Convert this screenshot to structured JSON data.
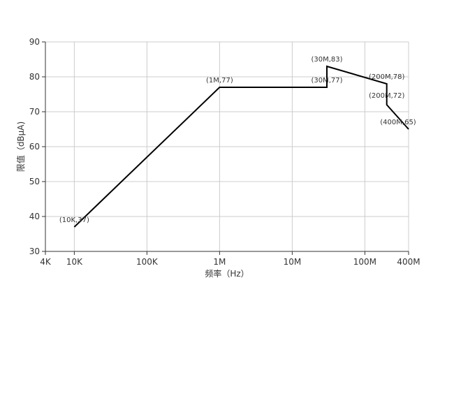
{
  "chart_data": {
    "type": "line",
    "title": "",
    "xlabel": "频率（Hz）",
    "ylabel": "限值（dBμA)",
    "x_scale": "log",
    "x_range_hz": [
      4000,
      400000000
    ],
    "ylim": [
      30,
      90
    ],
    "grid": true,
    "legend": "none",
    "line_color": "#000000",
    "grid_color": "#cccccc",
    "x_ticks": [
      {
        "value": 4000,
        "label": "4K"
      },
      {
        "value": 10000,
        "label": "10K"
      },
      {
        "value": 100000,
        "label": "100K"
      },
      {
        "value": 1000000,
        "label": "1M"
      },
      {
        "value": 10000000,
        "label": "10M"
      },
      {
        "value": 100000000,
        "label": "100M"
      },
      {
        "value": 400000000,
        "label": "400M"
      }
    ],
    "y_ticks": [
      {
        "value": 30,
        "label": "30"
      },
      {
        "value": 40,
        "label": "40"
      },
      {
        "value": 50,
        "label": "50"
      },
      {
        "value": 60,
        "label": "60"
      },
      {
        "value": 70,
        "label": "70"
      },
      {
        "value": 80,
        "label": "80"
      },
      {
        "value": 90,
        "label": "90"
      }
    ],
    "series": [
      {
        "points": [
          {
            "x": 10000,
            "y": 37,
            "label": "(10K,37)"
          },
          {
            "x": 1000000,
            "y": 77,
            "label": "(1M,77)"
          },
          {
            "x": 30000000,
            "y": 77,
            "label": "(30M,77)"
          },
          {
            "x": 30000000,
            "y": 83,
            "label": "(30M,83)"
          },
          {
            "x": 200000000,
            "y": 78,
            "label": "(200M,78)"
          },
          {
            "x": 200000000,
            "y": 72,
            "label": "(200M,72)"
          },
          {
            "x": 400000000,
            "y": 65,
            "label": "(400M,65)"
          }
        ]
      }
    ]
  }
}
